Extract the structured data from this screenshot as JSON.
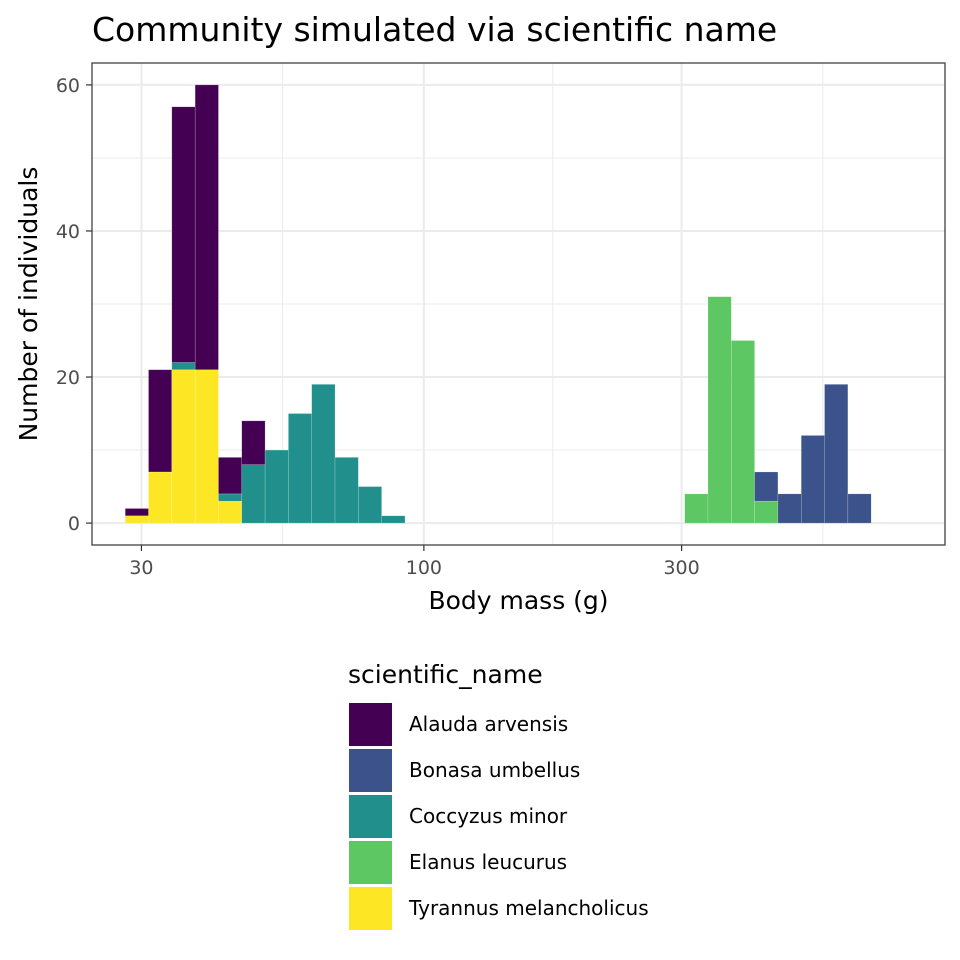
{
  "chart_data": {
    "type": "bar",
    "stacked": true,
    "title": "Community simulated via scientific name",
    "xlabel": "Body mass (g)",
    "ylabel": "Number of individuals",
    "x_scale": "log10",
    "xlim": [
      24.3,
      922
    ],
    "ylim": [
      -3,
      63
    ],
    "x_ticks": [
      30,
      100,
      300
    ],
    "y_ticks": [
      0,
      20,
      40,
      60
    ],
    "bin_edges": [
      28.0,
      30.92,
      34.15,
      37.72,
      41.66,
      46.01,
      50.82,
      56.13,
      61.99,
      68.47,
      75.62,
      83.52,
      92.25,
      101.88,
      112.53,
      124.28,
      137.27,
      151.61,
      167.45,
      184.94,
      204.26,
      225.6,
      249.17,
      275.2,
      303.95,
      335.71,
      370.78,
      409.52,
      452.3,
      499.56,
      551.75,
      609.39,
      673.06,
      743.37
    ],
    "grid": true,
    "legend": {
      "title": "scientific_name",
      "position": "bottom"
    },
    "series": [
      {
        "name": "Alauda arvensis",
        "color": "#440154",
        "values": [
          1,
          14,
          35,
          39,
          5,
          6,
          0,
          0,
          0,
          0,
          0,
          0,
          0,
          0,
          0,
          0,
          0,
          0,
          0,
          0,
          0,
          0,
          0,
          0,
          0,
          0,
          0,
          0,
          0,
          0,
          0,
          0,
          0
        ]
      },
      {
        "name": "Bonasa umbellus",
        "color": "#3B528B",
        "values": [
          0,
          0,
          0,
          0,
          0,
          0,
          0,
          0,
          0,
          0,
          0,
          0,
          0,
          0,
          0,
          0,
          0,
          0,
          0,
          0,
          0,
          0,
          0,
          0,
          0,
          0,
          0,
          4,
          4,
          12,
          19,
          4,
          0
        ]
      },
      {
        "name": "Coccyzus minor",
        "color": "#21908C",
        "values": [
          0,
          0,
          1,
          0,
          1,
          8,
          10,
          15,
          19,
          9,
          5,
          1,
          0,
          0,
          0,
          0,
          0,
          0,
          0,
          0,
          0,
          0,
          0,
          0,
          0,
          0,
          0,
          0,
          0,
          0,
          0,
          0,
          0
        ]
      },
      {
        "name": "Elanus leucurus",
        "color": "#5DC863",
        "values": [
          0,
          0,
          0,
          0,
          0,
          0,
          0,
          0,
          0,
          0,
          0,
          0,
          0,
          0,
          0,
          0,
          0,
          0,
          0,
          0,
          0,
          0,
          0,
          0,
          4,
          31,
          25,
          3,
          0,
          0,
          0,
          0,
          0
        ]
      },
      {
        "name": "Tyrannus melancholicus",
        "color": "#FDE725",
        "values": [
          1,
          7,
          21,
          21,
          3,
          0,
          0,
          0,
          0,
          0,
          0,
          0,
          0,
          0,
          0,
          0,
          0,
          0,
          0,
          0,
          0,
          0,
          0,
          0,
          0,
          0,
          0,
          0,
          0,
          0,
          0,
          0,
          0
        ]
      }
    ]
  }
}
